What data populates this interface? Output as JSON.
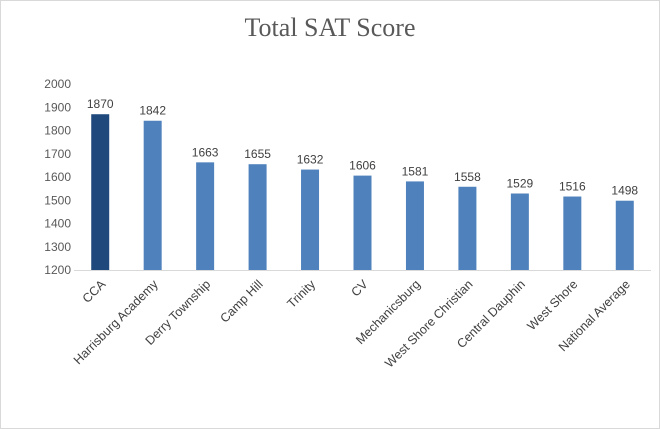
{
  "chart_data": {
    "type": "bar",
    "title": "Total SAT Score",
    "xlabel": "",
    "ylabel": "",
    "ylim": [
      1200,
      2000
    ],
    "yticks": [
      1200,
      1300,
      1400,
      1500,
      1600,
      1700,
      1800,
      1900,
      2000
    ],
    "grid": false,
    "categories": [
      "CCA",
      "Harrisburg Academy",
      "Derry Township",
      "Camp Hill",
      "Trinity",
      "CV",
      "Mechanicsburg",
      "West Shore Christian",
      "Central Dauphin",
      "West Shore",
      "National Average"
    ],
    "values": [
      1870,
      1842,
      1663,
      1655,
      1632,
      1606,
      1581,
      1558,
      1529,
      1516,
      1498
    ],
    "colors": {
      "highlight": "#1f497d",
      "bar": "#4f81bd",
      "axis": "#d9d9d9"
    },
    "highlight_category": "CCA"
  }
}
